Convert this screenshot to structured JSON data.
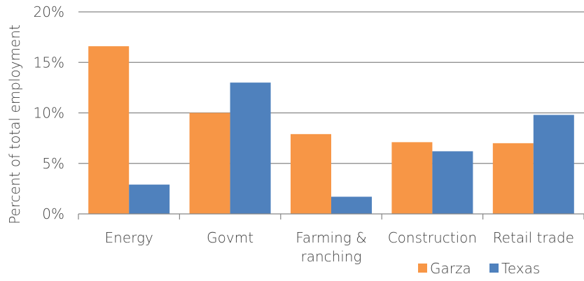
{
  "chart_data": {
    "type": "bar",
    "categories": [
      [
        "Energy"
      ],
      [
        "Govmt"
      ],
      [
        "Farming &",
        "ranching"
      ],
      [
        "Construction"
      ],
      [
        "Retail trade"
      ]
    ],
    "series": [
      {
        "name": "Garza",
        "values": [
          16.6,
          10.0,
          7.9,
          7.1,
          7.0
        ],
        "color": "#F79646"
      },
      {
        "name": "Texas",
        "values": [
          2.9,
          13.0,
          1.7,
          6.2,
          9.8
        ],
        "color": "#4F81BD"
      }
    ],
    "ylabel": "Percent of total employment",
    "ylim": [
      0,
      20
    ],
    "yticks": [
      "0%",
      "5%",
      "10%",
      "15%",
      "20%"
    ],
    "grid": true,
    "legend": "bottom-right"
  }
}
